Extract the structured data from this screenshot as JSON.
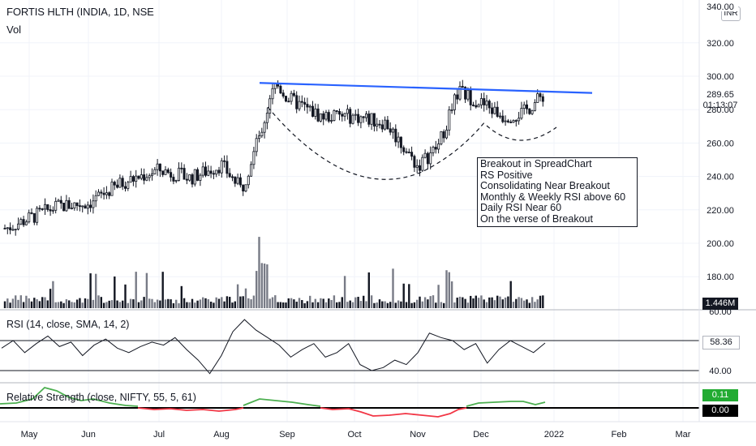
{
  "header": {
    "title": "FORTIS HLTH (INDIA, 1D, NSE",
    "volume_label": "Vol",
    "currency_badge": "INR"
  },
  "annotation": {
    "lines": [
      "Breakout in SpreadChart",
      "RS Positive",
      "Consolidating Near Breakout",
      "Monthly & Weekly RSI above 60",
      "Daily RSI Near 60",
      "On the verse of Breakout"
    ]
  },
  "price_scale": {
    "top_partial_label": "340.00",
    "current_price": "289.65",
    "countdown": "01:13:07",
    "volume_value": "1.446M"
  },
  "rsi_panel": {
    "label": "RSI (14, close, SMA, 14, 2)",
    "value_badge": "58.36",
    "top_scale": "60.00"
  },
  "rs_panel": {
    "label": "Relative Strength (close, NIFTY, 55, 5, 61)",
    "value_badge": "0.11",
    "zero_badge": "0.00"
  },
  "colors": {
    "trendline": "#2962ff",
    "rs_positive": "#4caf50",
    "rs_negative": "#f23645",
    "candle": "#131722",
    "volume_up": "#787b86",
    "volume_down": "#131722"
  },
  "chart_data": [
    {
      "type": "candlestick",
      "title": "FORTIS HLTH (INDIA, 1D, NSE",
      "x_ticks": [
        "May",
        "Jun",
        "Jul",
        "Aug",
        "Sep",
        "Oct",
        "Nov",
        "Dec",
        "2022",
        "Feb",
        "Mar"
      ],
      "y_ticks": [
        180,
        200,
        220,
        240,
        260,
        280,
        300,
        320
      ],
      "ylim": [
        165,
        345
      ],
      "close_series": [
        {
          "x": "May",
          "close": 209
        },
        {
          "x": "May-15",
          "close": 222
        },
        {
          "x": "Jun",
          "close": 224
        },
        {
          "x": "Jun-15",
          "close": 236
        },
        {
          "x": "Jul",
          "close": 244
        },
        {
          "x": "Jul-15",
          "close": 239
        },
        {
          "x": "Aug",
          "close": 247
        },
        {
          "x": "Aug-12",
          "close": 232
        },
        {
          "x": "Aug-20",
          "close": 265
        },
        {
          "x": "Aug-27",
          "close": 296
        },
        {
          "x": "Sep",
          "close": 287
        },
        {
          "x": "Sep-15",
          "close": 276
        },
        {
          "x": "Oct",
          "close": 276
        },
        {
          "x": "Oct-15",
          "close": 272
        },
        {
          "x": "Nov",
          "close": 246
        },
        {
          "x": "Nov-10",
          "close": 258
        },
        {
          "x": "Nov-22",
          "close": 291
        },
        {
          "x": "Dec",
          "close": 284
        },
        {
          "x": "Dec-10",
          "close": 276
        },
        {
          "x": "Dec-20",
          "close": 278
        },
        {
          "x": "Dec-30",
          "close": 289.65
        }
      ],
      "trendline": {
        "start": {
          "x": "Aug-20",
          "y": 296
        },
        "end": {
          "x": "Jan-20",
          "y": 290
        }
      },
      "cup_curve_dashed": true,
      "last_price": 289.65
    },
    {
      "type": "bar",
      "name": "Vol",
      "last_value": "1.446M"
    },
    {
      "type": "line",
      "name": "RSI (14, close, SMA, 14, 2)",
      "reference_lines": [
        60,
        40
      ],
      "y_ticks": [
        60,
        40
      ],
      "values": [
        55,
        60,
        52,
        58,
        63,
        56,
        59,
        50,
        57,
        61,
        55,
        52,
        56,
        59,
        57,
        62,
        54,
        47,
        38,
        50,
        66,
        74,
        67,
        62,
        57,
        49,
        54,
        58,
        49,
        52,
        58,
        44,
        40,
        42,
        47,
        44,
        52,
        65,
        62,
        60,
        54,
        58,
        45,
        54,
        60,
        56,
        52,
        58.36
      ],
      "last_value": 58.36
    },
    {
      "type": "line",
      "name": "Relative Strength (close, NIFTY, 55, 5, 61)",
      "reference_lines": [
        0
      ],
      "last_value": 0.11
    }
  ]
}
